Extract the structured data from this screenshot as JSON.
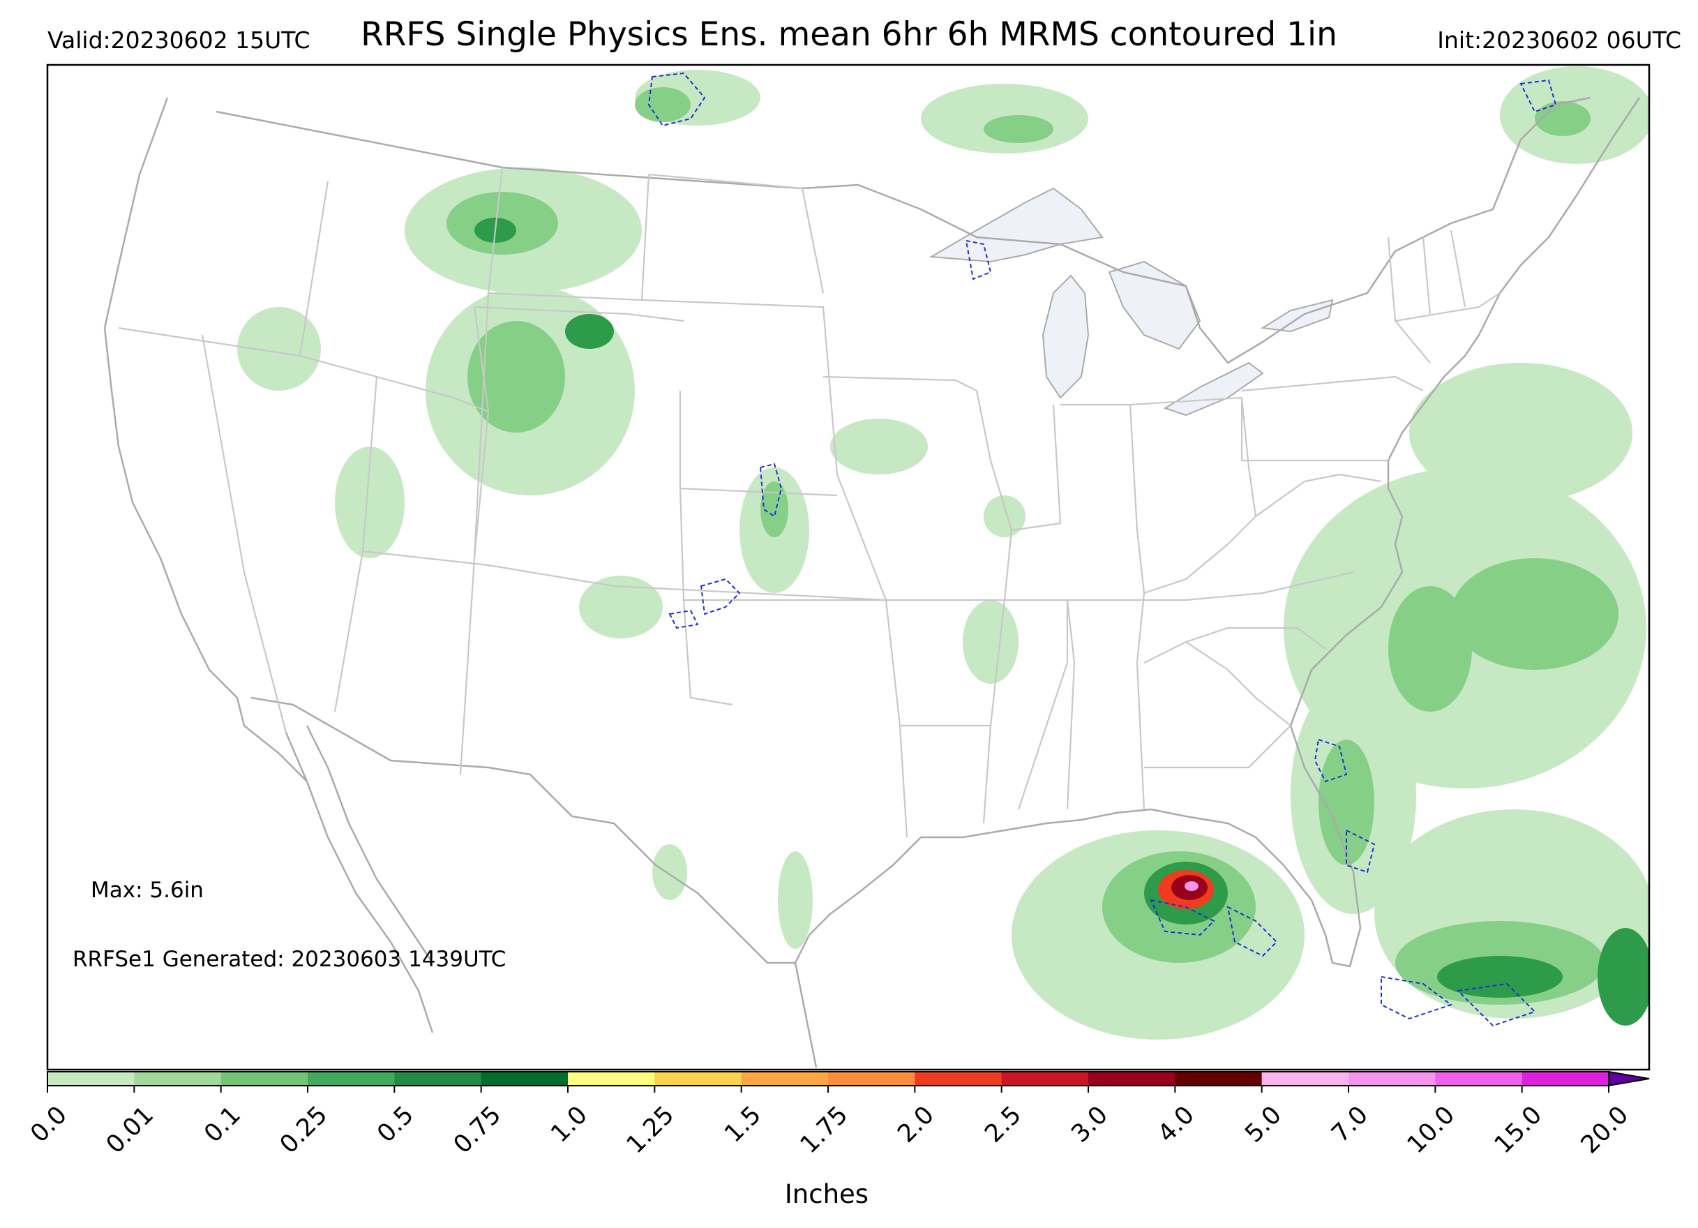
{
  "header": {
    "valid": "Valid:20230602 15UTC",
    "title": "RRFS Single Physics Ens. mean 6hr 6h MRMS contoured 1in",
    "init": "Init:20230602 06UTC"
  },
  "map": {
    "max_label": "Max: 5.6in",
    "generated_label": "RRFSe1 Generated: 20230603 1439UTC",
    "colors": {
      "boundary": "#aaaaaa",
      "lakes": "#eef2f8",
      "contour": "#1f2fd6",
      "light_green": "#c6e8c2",
      "mid_green": "#86cf87",
      "dark_green": "#2e9b4a"
    }
  },
  "colorbar": {
    "label": "Inches",
    "ticks": [
      "0.0",
      "0.01",
      "0.1",
      "0.25",
      "0.5",
      "0.75",
      "1.0",
      "1.25",
      "1.5",
      "1.75",
      "2.0",
      "2.5",
      "3.0",
      "4.0",
      "5.0",
      "7.0",
      "10.0",
      "15.0",
      "20.0"
    ],
    "colors": [
      "#ffffff",
      "#c7e9c0",
      "#a1d99b",
      "#74c476",
      "#41ab5d",
      "#238b45",
      "#006d2c",
      "#ffff80",
      "#ffd24d",
      "#ffa644",
      "#fd8d3c",
      "#f03b20",
      "#cc1426",
      "#99001a",
      "#650000",
      "#fbb4ee",
      "#f794f0",
      "#f060ea",
      "#e020e0",
      "#b810d8",
      "#8010c8"
    ],
    "extend_color": "#6000a0"
  }
}
